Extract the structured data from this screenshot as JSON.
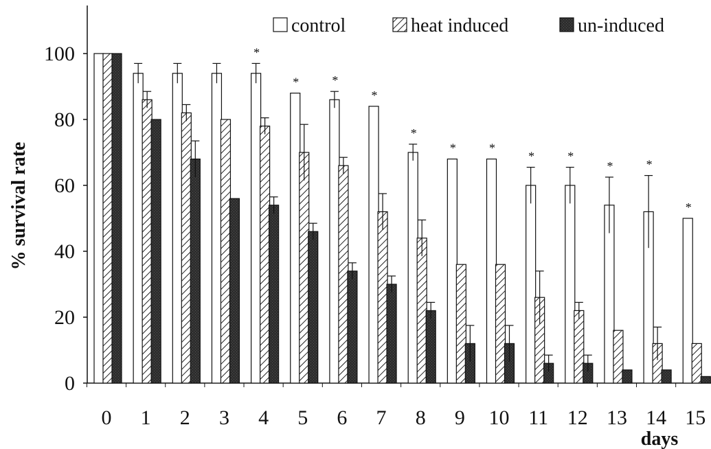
{
  "chart_data": {
    "type": "bar",
    "title": "",
    "xlabel": "days",
    "ylabel": "% survival rate",
    "ylim": [
      0,
      100
    ],
    "yticks": [
      0,
      20,
      40,
      60,
      80,
      100
    ],
    "categories": [
      "0",
      "1",
      "2",
      "3",
      "4",
      "5",
      "6",
      "7",
      "8",
      "9",
      "10",
      "11",
      "12",
      "13",
      "14",
      "15"
    ],
    "legend_position": "top",
    "grid": false,
    "series": [
      {
        "name": "control",
        "pattern": "open",
        "color": "#ffffff",
        "values": [
          100,
          94,
          94,
          94,
          94,
          88,
          86,
          84,
          70,
          68,
          68,
          60,
          60,
          54,
          52,
          50
        ],
        "errors": [
          0,
          3,
          3,
          3,
          3,
          0,
          2.5,
          0,
          2.5,
          0,
          0,
          5.5,
          5.5,
          8.5,
          11,
          0
        ]
      },
      {
        "name": "heat induced",
        "pattern": "hatched",
        "color": "#ffffff",
        "values": [
          100,
          86,
          82,
          80,
          78,
          70,
          66,
          52,
          44,
          36,
          36,
          26,
          22,
          16,
          12,
          12
        ],
        "errors": [
          0,
          2.5,
          2.5,
          0,
          2.5,
          8.5,
          2.5,
          5.5,
          5.5,
          0,
          0,
          8,
          2.5,
          0,
          5,
          0
        ]
      },
      {
        "name": "un-induced",
        "pattern": "solid",
        "color": "#2b2b2b",
        "values": [
          100,
          80,
          68,
          56,
          54,
          46,
          34,
          30,
          22,
          12,
          12,
          6,
          6,
          4,
          4,
          2
        ],
        "errors": [
          0,
          0,
          5.5,
          0,
          2.5,
          2.5,
          2.5,
          2.5,
          2.5,
          5.5,
          5.5,
          2.5,
          2.5,
          0,
          0,
          0
        ]
      }
    ],
    "significance_markers": {
      "symbol": "*",
      "days": [
        "4",
        "5",
        "6",
        "7",
        "8",
        "9",
        "10",
        "11",
        "12",
        "13",
        "14",
        "15"
      ]
    }
  }
}
